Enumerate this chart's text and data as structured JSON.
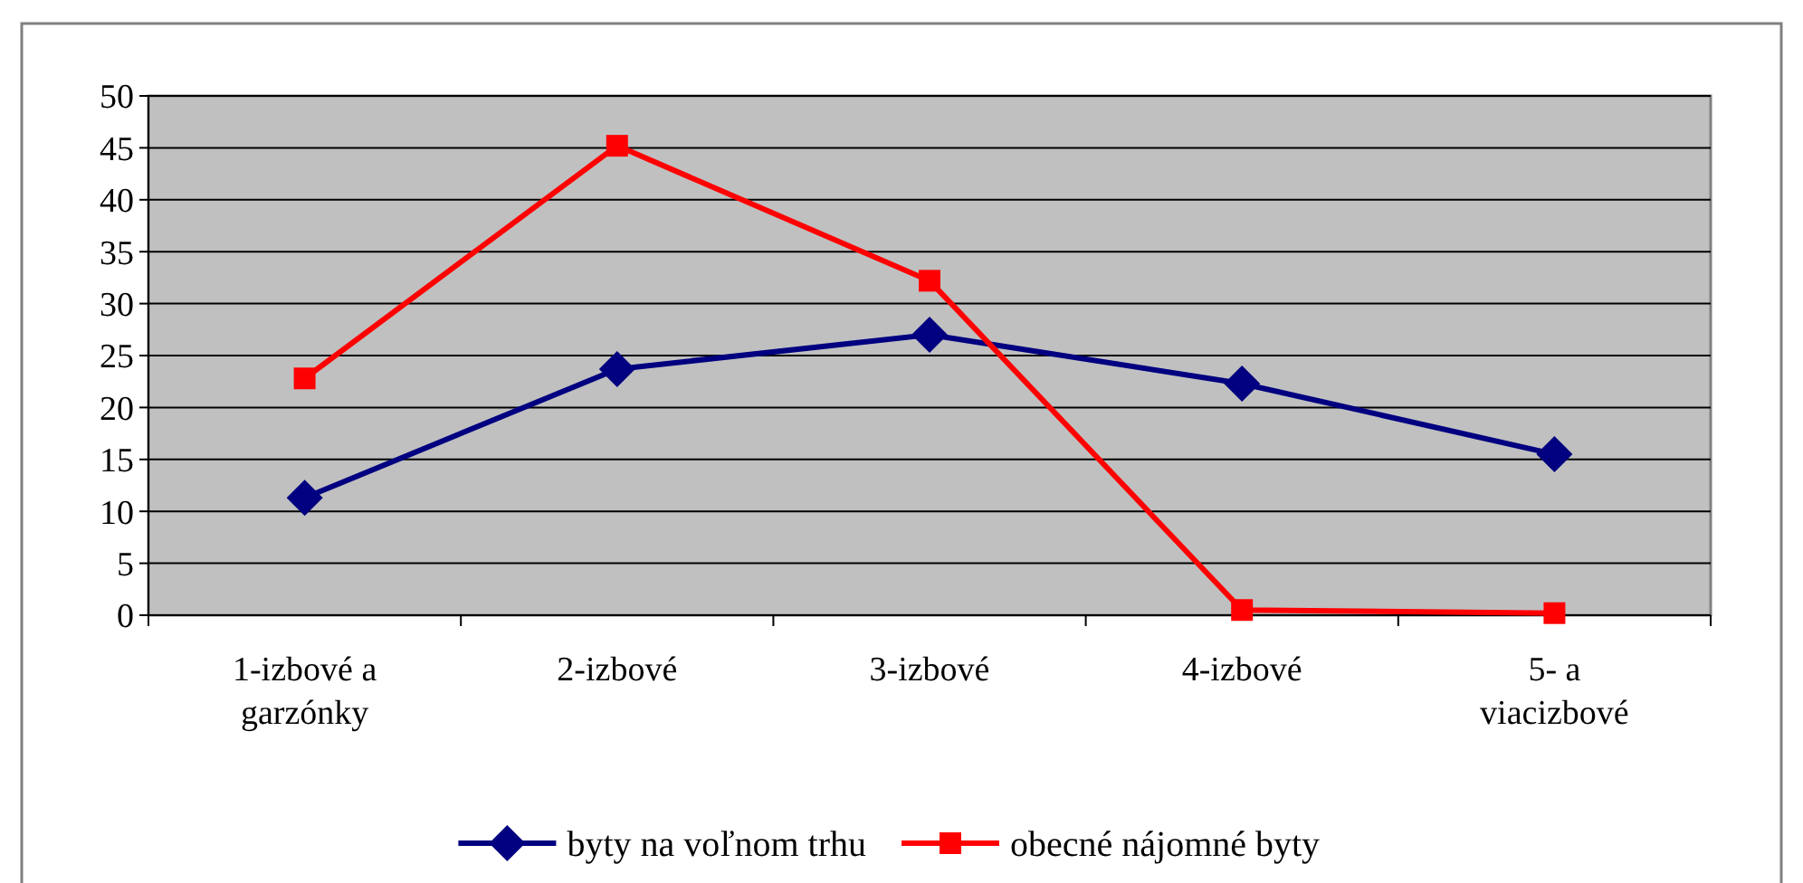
{
  "chart_data": {
    "type": "line",
    "categories": [
      "1-izbové a garzónky",
      "2-izbové",
      "3-izbové",
      "4-izbové",
      "5- a viacizbové"
    ],
    "series": [
      {
        "name": "byty na voľnom trhu",
        "color": "#000080",
        "marker": "diamond",
        "values": [
          11.3,
          23.7,
          27.0,
          22.3,
          15.5
        ]
      },
      {
        "name": "obecné nájomné byty",
        "color": "#ff0000",
        "marker": "square",
        "values": [
          22.8,
          45.2,
          32.2,
          0.5,
          0.2
        ]
      }
    ],
    "ylim": [
      0,
      50
    ],
    "yticks": [
      0,
      5,
      10,
      15,
      20,
      25,
      30,
      35,
      40,
      45,
      50
    ],
    "grid": "y",
    "legend": "bottom"
  }
}
